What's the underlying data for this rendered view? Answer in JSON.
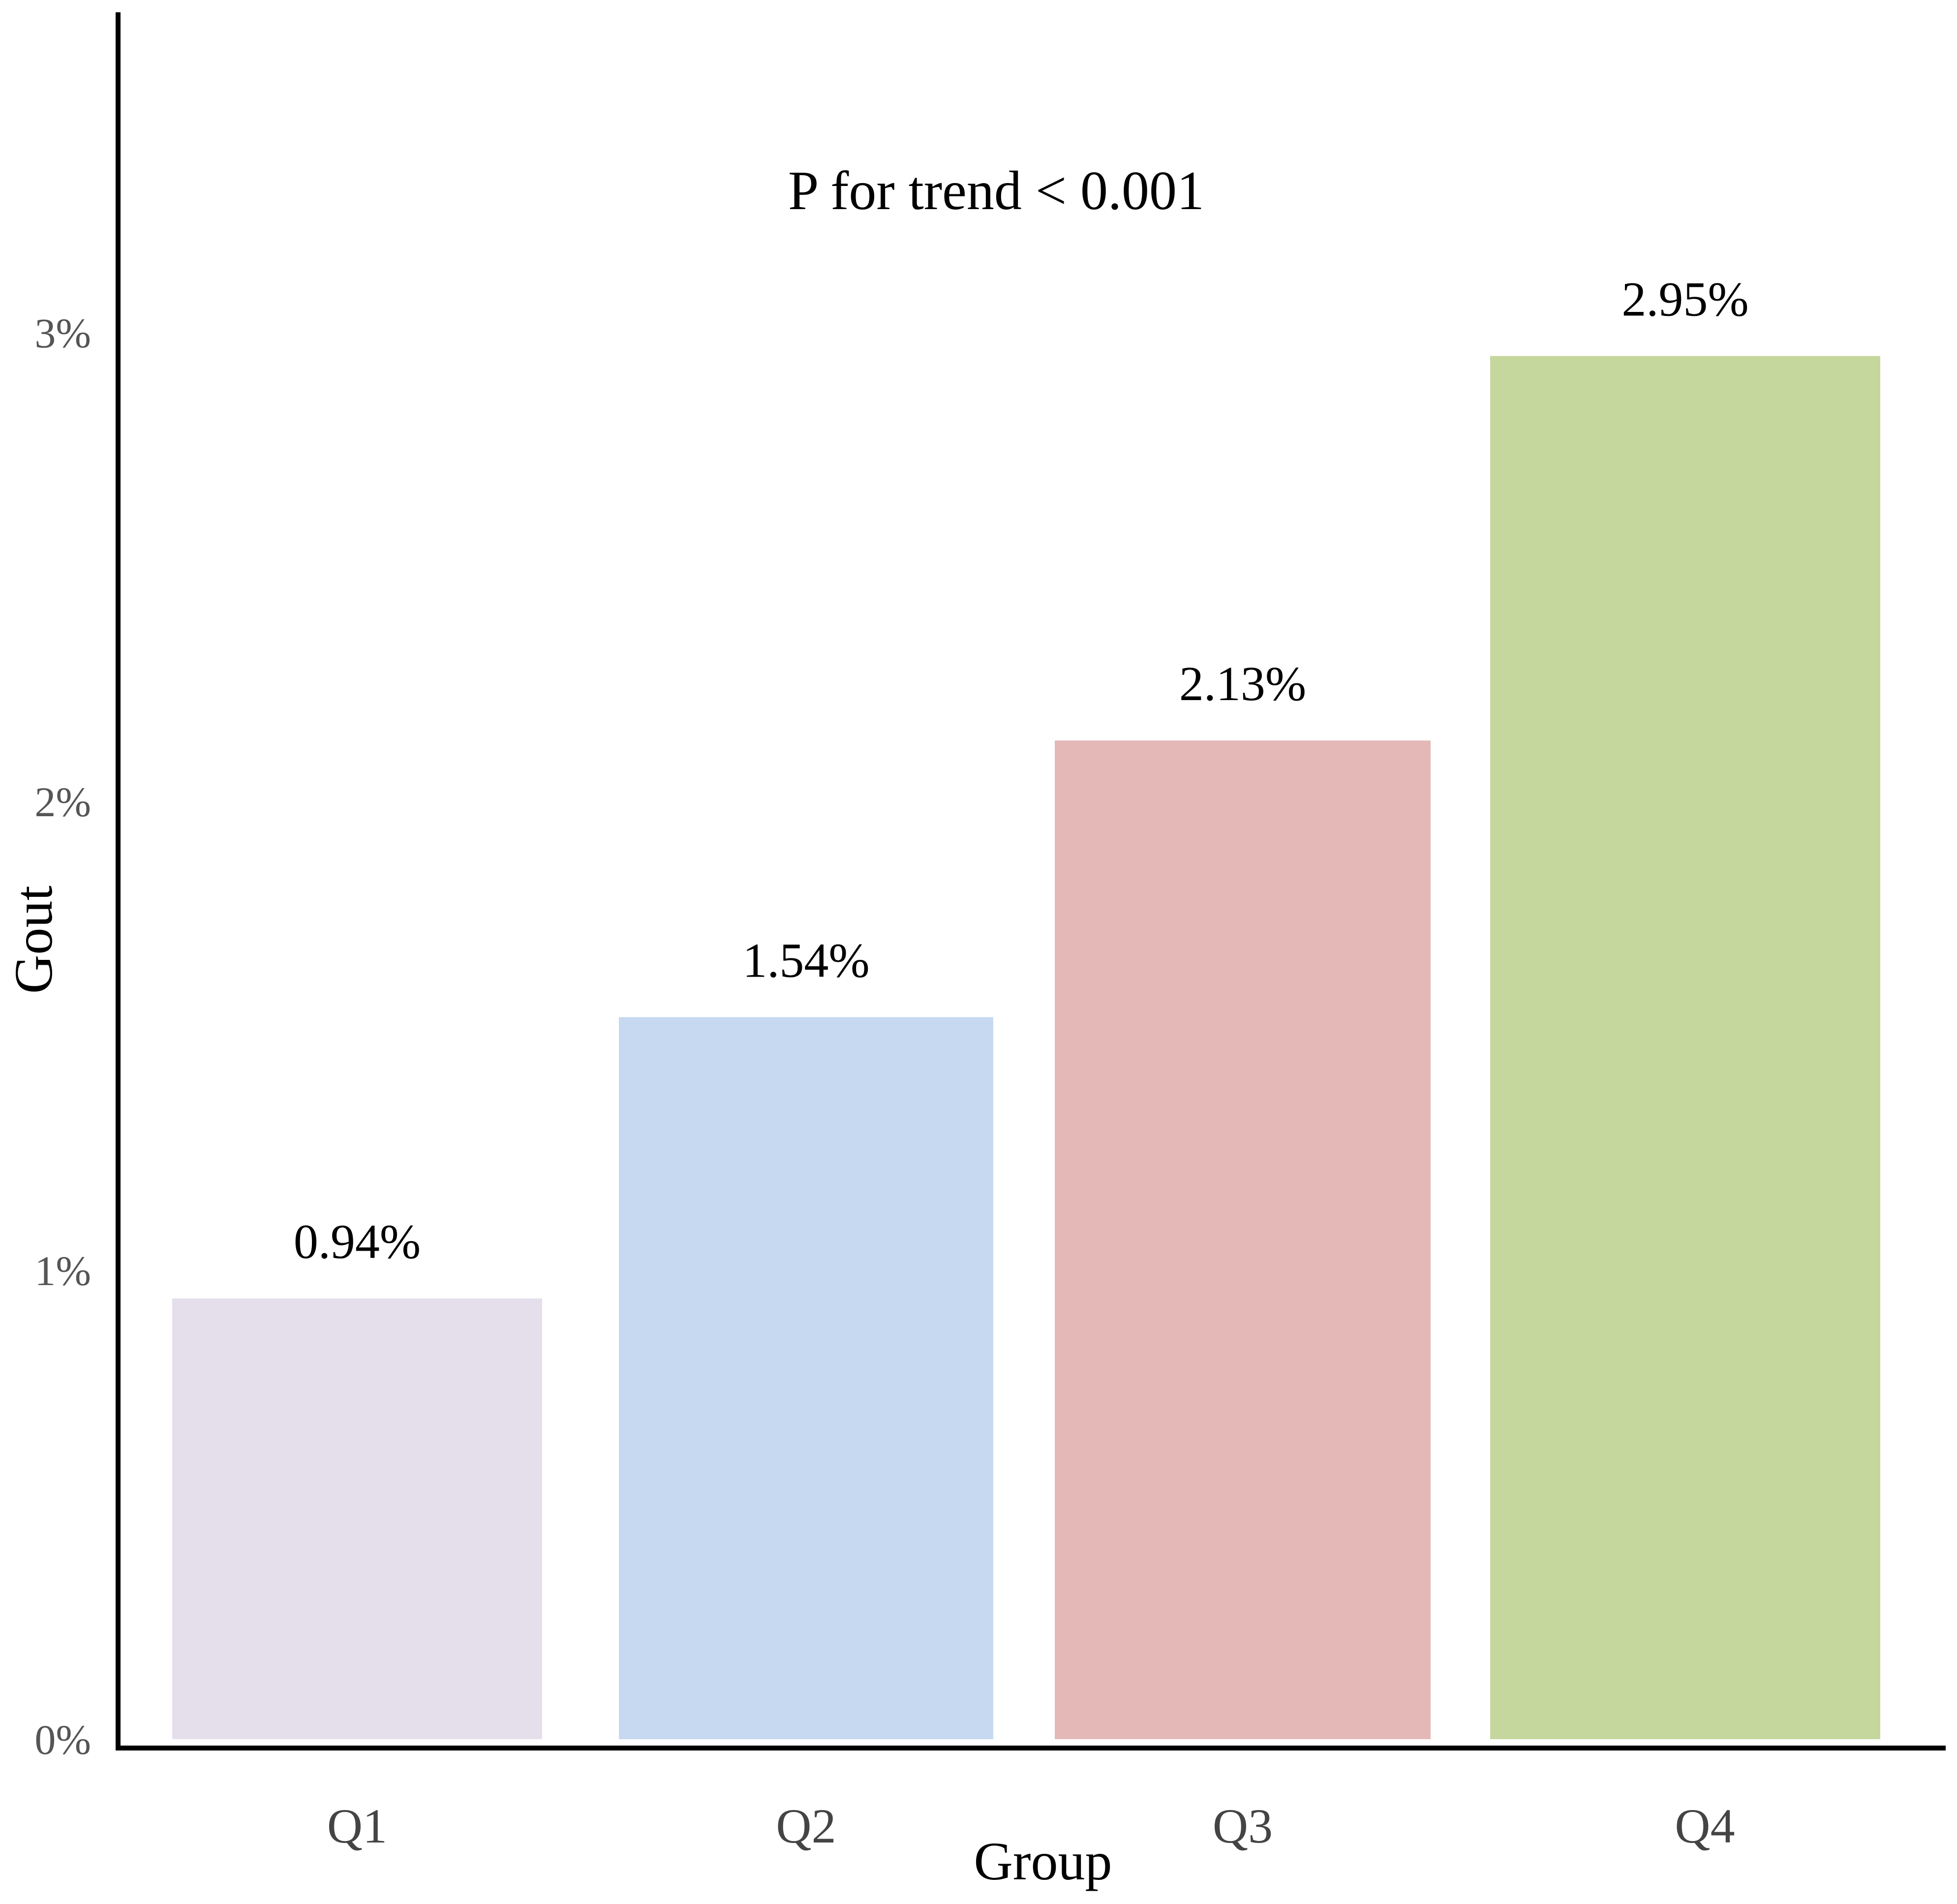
{
  "chart_data": {
    "type": "bar",
    "categories": [
      "Q1",
      "Q2",
      "Q3",
      "Q4"
    ],
    "values": [
      0.94,
      1.54,
      2.13,
      2.95
    ],
    "value_labels": [
      "0.94%",
      "1.54%",
      "2.13%",
      "2.95%"
    ],
    "colors": [
      "#e5dfec",
      "#c7d9f0",
      "#e5b8b8",
      "#c5d79d"
    ],
    "xlabel": "Group",
    "ylabel": "Gout",
    "ylim": [
      0,
      3.7
    ],
    "yticks": [
      0,
      1,
      2,
      3
    ],
    "ytick_labels": [
      "0%",
      "1%",
      "2%",
      "3%"
    ],
    "annotation": "P for trend < 0.001",
    "grid": false,
    "legend": "none"
  }
}
